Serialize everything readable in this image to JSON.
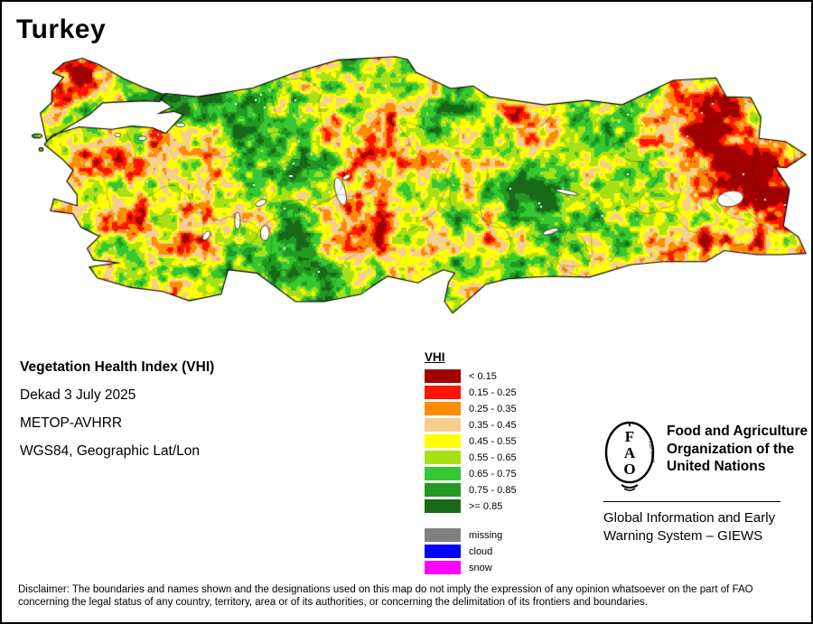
{
  "page": {
    "title": "Turkey"
  },
  "info": {
    "line1": "Vegetation Health Index (VHI)",
    "line2": "Dekad 3 July 2025",
    "line3": "METOP-AVHRR",
    "line4": "WGS84, Geographic Lat/Lon"
  },
  "legend": {
    "title": "VHI",
    "entries": [
      {
        "label": "< 0.15",
        "color": "#a00000"
      },
      {
        "label": "0.15 - 0.25",
        "color": "#ff1400"
      },
      {
        "label": "0.25 - 0.35",
        "color": "#ff8c00"
      },
      {
        "label": "0.35 - 0.45",
        "color": "#f5cf8e"
      },
      {
        "label": "0.45 - 0.55",
        "color": "#ffff00"
      },
      {
        "label": "0.55 - 0.65",
        "color": "#a8e017"
      },
      {
        "label": "0.65 - 0.75",
        "color": "#35c832"
      },
      {
        "label": "0.75 - 0.85",
        "color": "#229a22"
      },
      {
        "label": ">= 0.85",
        "color": "#186a18"
      }
    ],
    "extra_entries": [
      {
        "label": "missing",
        "color": "#808080"
      },
      {
        "label": "cloud",
        "color": "#0000ff"
      },
      {
        "label": "snow",
        "color": "#ff00ff"
      }
    ]
  },
  "footer": {
    "fao_logo_letters": [
      "F",
      "A",
      "O"
    ],
    "fiat_panis": "FIAT PANIS",
    "fao_name_lines": [
      "Food and Agriculture",
      "Organization of the",
      "United Nations"
    ],
    "giews_lines": [
      "Global Information and Early",
      "Warning System – GIEWS"
    ]
  },
  "disclaimer": "Disclaimer: The boundaries and names shown and the designations used on this map do not imply the expression of any opinion whatsoever on the part of FAO concerning the legal status of any country, territory, area or of its authorities, or concerning the delimitation of its frontiers and boundaries."
}
